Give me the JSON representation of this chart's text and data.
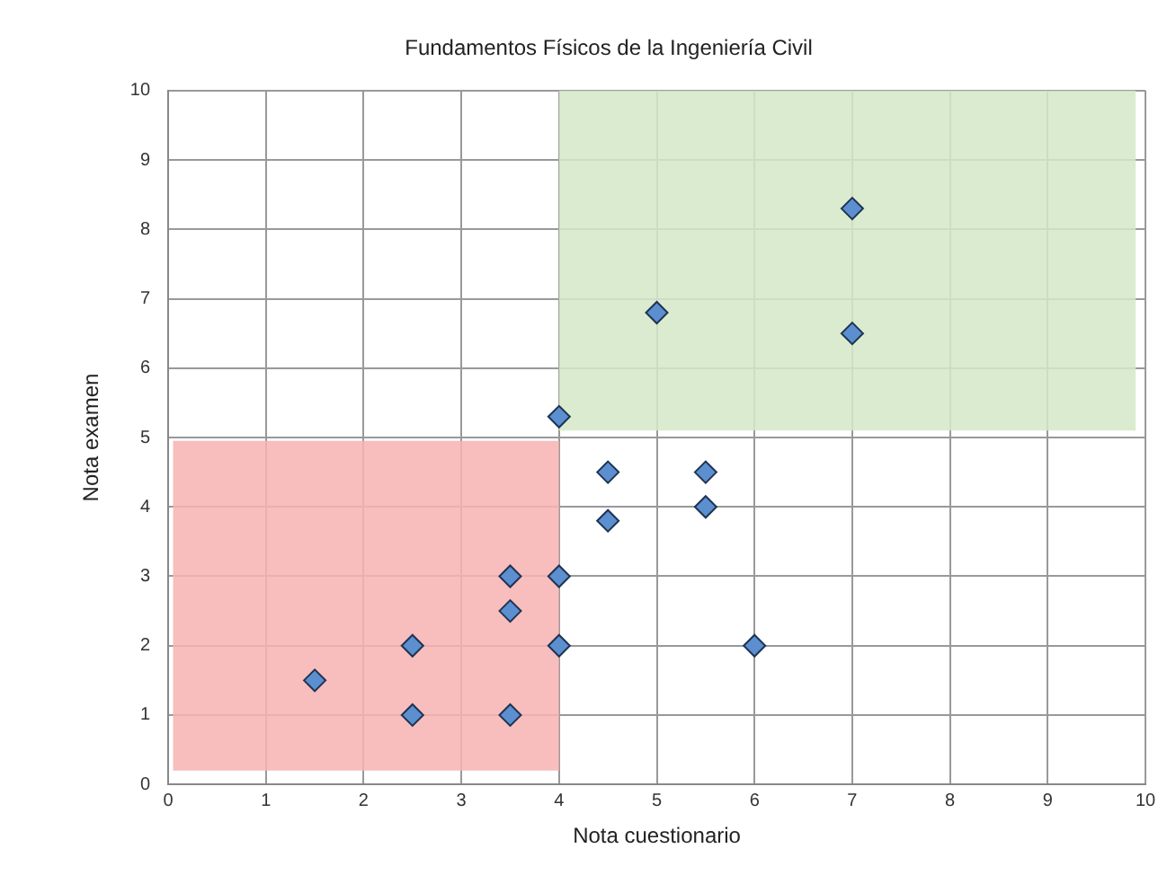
{
  "chart_data": {
    "type": "scatter",
    "title": "Fundamentos Físicos de la Ingeniería Civil",
    "xlabel": "Nota cuestionario",
    "ylabel": "Nota examen",
    "series": [
      {
        "type": "area",
        "x": [
          4,
          4,
          9.9,
          9.9
        ],
        "values": [
          5.1,
          10,
          10,
          5.1
        ],
        "color": "#d6e8c8"
      },
      {
        "type": "area",
        "x": [
          0.05,
          0.05,
          4,
          4
        ],
        "values": [
          0.2,
          4.95,
          4.95,
          0.2
        ],
        "color": "#f7b3b3"
      },
      {
        "marker": "diamond",
        "x": [
          1.5,
          2.5,
          2.5,
          3.5,
          3.5,
          3.5,
          4,
          4,
          4,
          4.5,
          4.5,
          5.5,
          5.5,
          6,
          5,
          7,
          7
        ],
        "values": [
          1.5,
          2,
          1,
          3,
          2.5,
          1,
          3,
          2,
          5.3,
          4.5,
          3.8,
          4.5,
          4,
          2,
          6.8,
          8.3,
          6.5
        ],
        "color": "#5b8fd0"
      }
    ],
    "xlim": [
      0,
      10
    ],
    "xticks": [
      0,
      1,
      2,
      3,
      4,
      5,
      6,
      7,
      8,
      9,
      10
    ],
    "ylim": [
      0,
      10
    ],
    "yticks": [
      0,
      1,
      2,
      3,
      4,
      5,
      6,
      7,
      8,
      9,
      10
    ],
    "grid": true
  }
}
